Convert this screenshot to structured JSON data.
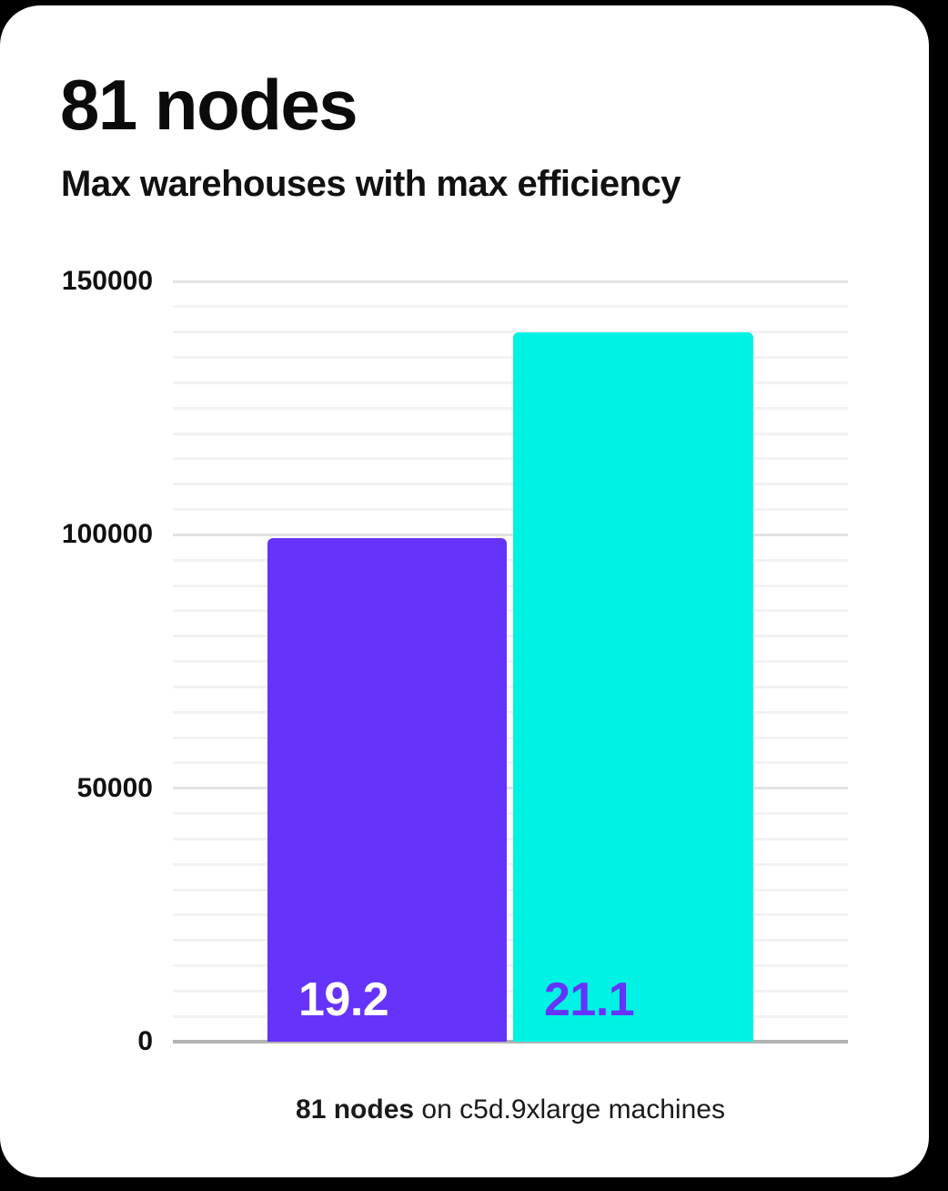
{
  "page": {
    "background_color": "#000000",
    "card_color": "#ffffff"
  },
  "header": {
    "title": "81 nodes",
    "subtitle": "Max warehouses with max efficiency"
  },
  "chart_data": {
    "type": "bar",
    "title": "81 nodes",
    "subtitle": "Max warehouses with max efficiency",
    "categories": [
      "19.2",
      "21.1"
    ],
    "values": [
      99400,
      140000
    ],
    "bar_labels": [
      "19.2",
      "21.1"
    ],
    "bar_colors": [
      "#6633fa",
      "#00f2e4"
    ],
    "bar_label_colors": [
      "#ffffff",
      "#6633fa"
    ],
    "ylim": [
      0,
      150000
    ],
    "y_major_ticks": [
      0,
      50000,
      100000,
      150000
    ],
    "y_tick_labels": [
      "0",
      "50000",
      "100000",
      "150000"
    ],
    "y_minor_step": 5000,
    "grid": "horizontal-minor-and-major",
    "legend": "none",
    "xlabel": "",
    "ylabel": "",
    "caption": "81 nodes on c5d.9xlarge machines"
  },
  "caption": {
    "bold": "81 nodes",
    "rest": " on c5d.9xlarge machines"
  }
}
